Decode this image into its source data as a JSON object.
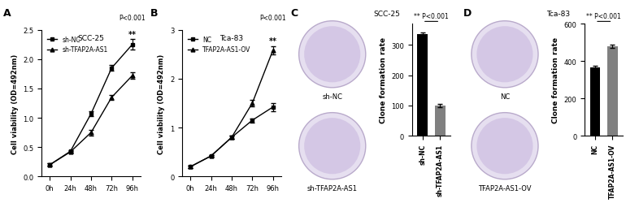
{
  "chart_data": [
    {
      "panel": "A",
      "type": "line",
      "title": "SCC-25",
      "y_label": "Cell viability (OD=492nm)",
      "categories": [
        "0h",
        "24h",
        "48h",
        "72h",
        "96h"
      ],
      "series": [
        {
          "name": "sh-NC",
          "color": "#000000",
          "marker": "square",
          "values": [
            0.2,
            0.43,
            1.07,
            1.85,
            2.25
          ],
          "errors": [
            0.02,
            0.02,
            0.04,
            0.05,
            0.09
          ]
        },
        {
          "name": "sh-TFAP2A-AS1",
          "color": "#000000",
          "marker": "triangle",
          "values": [
            0.2,
            0.42,
            0.75,
            1.35,
            1.72
          ],
          "errors": [
            0.02,
            0.02,
            0.05,
            0.04,
            0.06
          ]
        }
      ],
      "ylim": [
        0,
        2.5
      ],
      "yticks": [
        {
          "value": 0,
          "label": "0.0"
        },
        {
          "value": 0.5,
          "label": "0.5"
        },
        {
          "value": 1.0,
          "label": "1.0"
        },
        {
          "value": 1.5,
          "label": "1.5"
        },
        {
          "value": 2.0,
          "label": "2.0"
        },
        {
          "value": 2.5,
          "label": "2.5"
        }
      ],
      "annotations": [
        "P<0.001",
        "**"
      ],
      "legend": "upper left"
    },
    {
      "panel": "B",
      "type": "line",
      "title": "Tca-83",
      "y_label": "Cell viability (OD=492nm)",
      "categories": [
        "0h",
        "24h",
        "48h",
        "72h",
        "96h"
      ],
      "series": [
        {
          "name": "NC",
          "color": "#000000",
          "marker": "square",
          "values": [
            0.2,
            0.42,
            0.8,
            1.15,
            1.42
          ],
          "errors": [
            0.02,
            0.02,
            0.03,
            0.04,
            0.08
          ]
        },
        {
          "name": "TFAP2A-AS1-OV",
          "color": "#000000",
          "marker": "triangle",
          "values": [
            0.2,
            0.42,
            0.8,
            1.5,
            2.58
          ],
          "errors": [
            0.02,
            0.02,
            0.03,
            0.07,
            0.09
          ]
        }
      ],
      "ylim": [
        0,
        3
      ],
      "yticks": [
        0,
        1,
        2,
        3
      ],
      "annotations": [
        "P<0.001",
        "**"
      ],
      "legend": "upper left"
    },
    {
      "panel": "C",
      "type": "bar",
      "title": "SCC-25",
      "image_labels": [
        "sh-NC",
        "sh-TFAP2A-AS1"
      ],
      "y_label": "Clone formation rate",
      "categories": [
        "sh-NC",
        "sh-TFAP2A-AS1"
      ],
      "values": [
        335,
        100
      ],
      "errors": [
        5,
        5
      ],
      "colors": [
        "#000000",
        "#808080"
      ],
      "ylim": [
        0,
        370
      ],
      "yticks": [
        0,
        100,
        200,
        300
      ],
      "annotation": "** P<0.001"
    },
    {
      "panel": "D",
      "type": "bar",
      "title": "Tca-83",
      "image_labels": [
        "NC",
        "TFAP2A-AS1-OV"
      ],
      "y_label": "Clone formation rate",
      "categories": [
        "NC",
        "TFAP2A-AS1-OV"
      ],
      "values": [
        365,
        480
      ],
      "errors": [
        8,
        8
      ],
      "colors": [
        "#000000",
        "#808080"
      ],
      "ylim": [
        0,
        600
      ],
      "yticks": [
        0,
        200,
        400,
        600
      ],
      "annotation": "** P<0.001"
    }
  ]
}
